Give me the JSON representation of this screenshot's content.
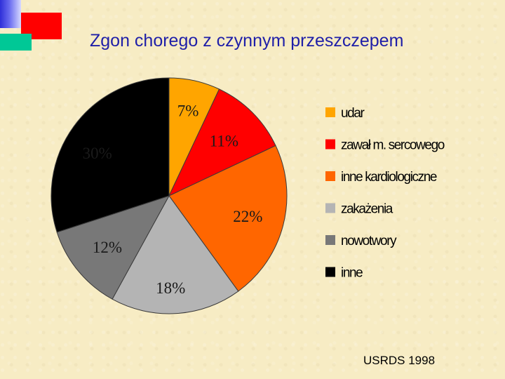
{
  "title": "Zgon chorego z czynnym przeszczepem",
  "source": "USRDS 1998",
  "colors": {
    "background": "#f7ecc4",
    "title": "#1f1fa8",
    "deco_blue": "#2e2fd8",
    "deco_red": "#ff0000",
    "deco_teal": "#00c896"
  },
  "chart_data": {
    "type": "pie",
    "unit": "%",
    "start": "12 o'clock, clockwise",
    "legend_position": "right",
    "slices": [
      {
        "legend": "udar",
        "value": 7,
        "label": "7%",
        "color": "#ffa500"
      },
      {
        "legend": "zawał m. sercowego",
        "value": 11,
        "label": "11%",
        "color": "#ff0000"
      },
      {
        "legend": "inne kardiologiczne",
        "value": 22,
        "label": "22%",
        "color": "#ff6600"
      },
      {
        "legend": "zakażenia",
        "value": 18,
        "label": "18%",
        "color": "#b4b4b4"
      },
      {
        "legend": "nowotwory",
        "value": 12,
        "label": "12%",
        "color": "#787878"
      },
      {
        "legend": "inne",
        "value": 30,
        "label": "30%",
        "color": "#000000"
      }
    ]
  }
}
